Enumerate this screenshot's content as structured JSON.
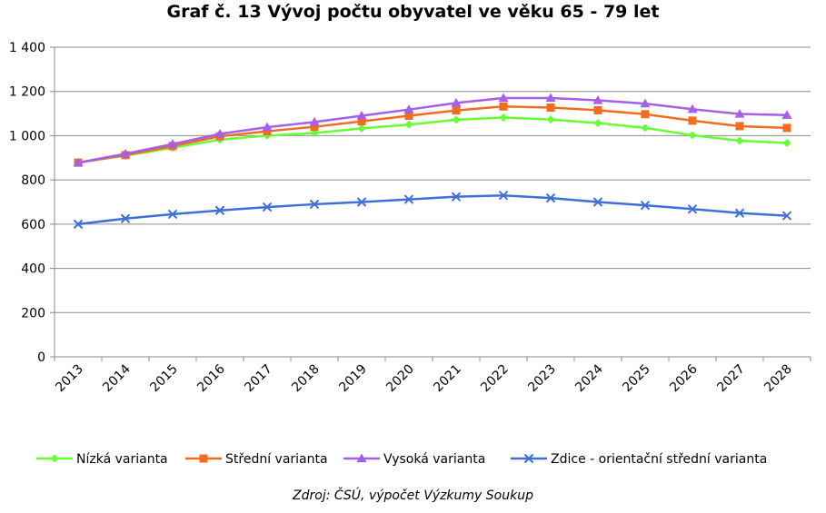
{
  "chart_data": {
    "type": "line",
    "title": "Graf č. 13 Vývoj počtu obyvatel ve věku 65 - 79 let",
    "xlabel": "",
    "ylabel": "",
    "categories": [
      "2013",
      "2014",
      "2015",
      "2016",
      "2017",
      "2018",
      "2019",
      "2020",
      "2021",
      "2022",
      "2023",
      "2024",
      "2025",
      "2026",
      "2027",
      "2028"
    ],
    "ylim": [
      0,
      1400
    ],
    "yticks": [
      0,
      200,
      400,
      600,
      800,
      1000,
      1200,
      1400
    ],
    "ytick_labels": [
      "0",
      "200",
      "400",
      "600",
      "800",
      "1 000",
      "1 200",
      "1 400"
    ],
    "grid": true,
    "legend_position": "bottom",
    "series": [
      {
        "name": "Nízká varianta",
        "color": "#66ff33",
        "marker": "diamond",
        "values": [
          878,
          910,
          945,
          982,
          1000,
          1012,
          1033,
          1050,
          1072,
          1082,
          1073,
          1057,
          1035,
          1002,
          977,
          967
        ]
      },
      {
        "name": "Střední varianta",
        "color": "#f26c1f",
        "marker": "square",
        "values": [
          878,
          912,
          953,
          997,
          1020,
          1040,
          1065,
          1090,
          1114,
          1132,
          1127,
          1115,
          1097,
          1068,
          1043,
          1035
        ]
      },
      {
        "name": "Vysoká varianta",
        "color": "#a55fe8",
        "marker": "triangle",
        "values": [
          878,
          918,
          962,
          1008,
          1038,
          1062,
          1090,
          1118,
          1148,
          1170,
          1170,
          1160,
          1145,
          1120,
          1098,
          1093
        ]
      },
      {
        "name": "Zdice - orientační střední varianta",
        "color": "#3f6fd8",
        "marker": "x",
        "values": [
          600,
          625,
          645,
          662,
          677,
          690,
          700,
          712,
          724,
          730,
          718,
          700,
          685,
          668,
          650,
          638
        ]
      }
    ]
  },
  "source_note": "Zdroj: ČSÚ, výpočet Výzkumy Soukup"
}
